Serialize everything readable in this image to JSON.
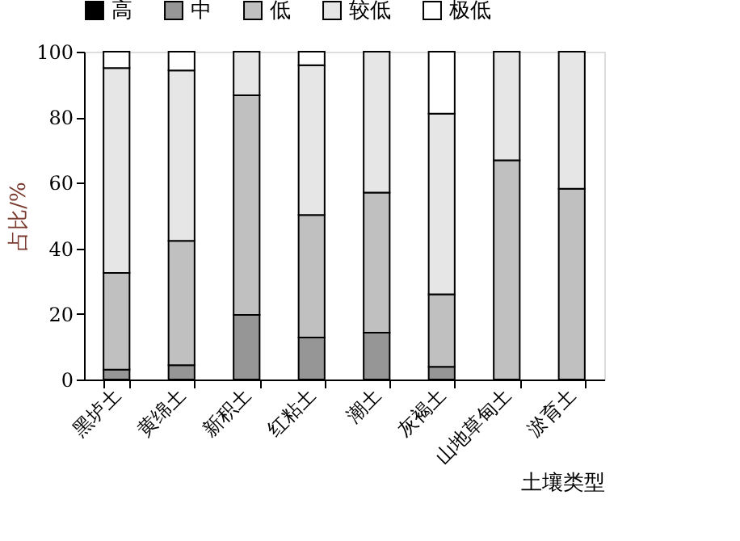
{
  "chart_data": {
    "type": "bar",
    "stacked": true,
    "xlabel": "土壤类型",
    "ylabel": "占比/%",
    "categories": [
      "黑垆土",
      "黄绵土",
      "新积土",
      "红粘土",
      "潮土",
      "灰褐土",
      "山地草甸土",
      "淤育土"
    ],
    "series": [
      {
        "name": "高",
        "color": "#000000",
        "values": [
          0,
          0,
          0,
          0,
          0,
          0,
          0,
          0
        ]
      },
      {
        "name": "中",
        "color": "#969696",
        "values": [
          3,
          4.4,
          19.7,
          12.8,
          14.3,
          3.9,
          0,
          0
        ]
      },
      {
        "name": "低",
        "color": "#c0c0c0",
        "values": [
          29.5,
          37.9,
          67,
          37.4,
          42.7,
          22.1,
          66.9,
          58.2
        ]
      },
      {
        "name": "较低",
        "color": "#e6e6e6",
        "values": [
          62.5,
          52,
          13.3,
          45.7,
          43,
          55.1,
          33.1,
          41.8
        ]
      },
      {
        "name": "极低",
        "color": "#ffffff",
        "values": [
          5,
          5.7,
          0,
          4.1,
          0,
          18.9,
          0,
          0
        ]
      }
    ],
    "ylim": [
      0,
      100
    ],
    "yticks": [
      0,
      20,
      40,
      60,
      80,
      100
    ],
    "grid": false,
    "legend": "top"
  }
}
